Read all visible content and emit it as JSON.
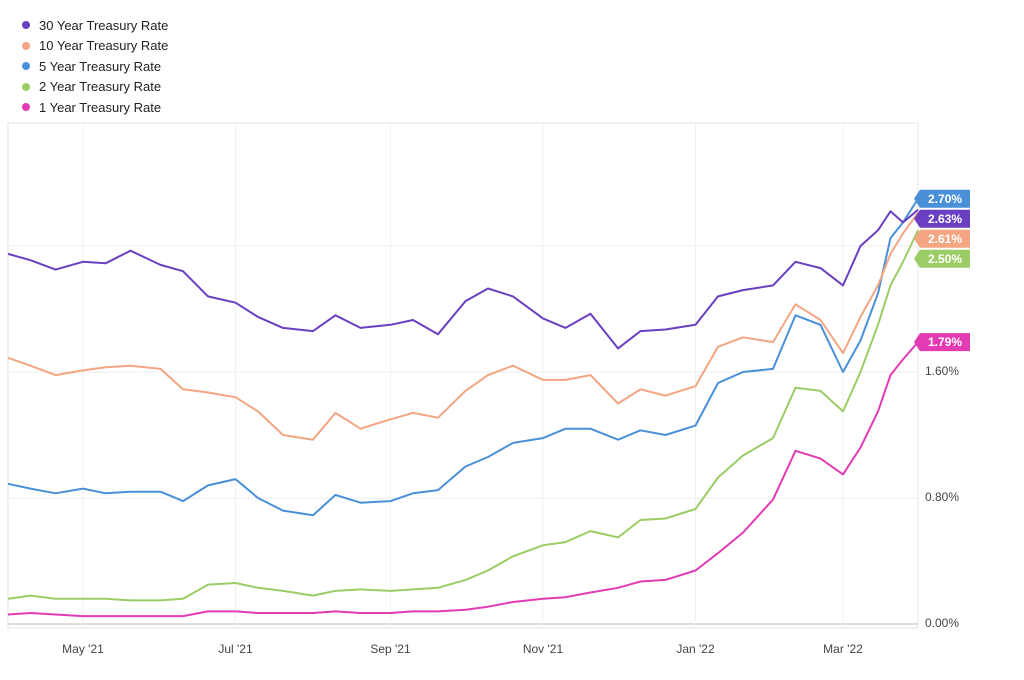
{
  "chart_data": {
    "type": "line",
    "title": "",
    "xlabel": "",
    "ylabel": "",
    "x_range": [
      "2021-04-01",
      "2022-03-31"
    ],
    "ylim": [
      0,
      3.1
    ],
    "y_ticks": [
      0,
      0.8,
      1.6
    ],
    "y_tick_labels": [
      "0.00%",
      "0.80%",
      "1.60%"
    ],
    "x_ticks": [
      "2021-05-01",
      "2021-07-01",
      "2021-09-01",
      "2021-11-01",
      "2022-01-01",
      "2022-03-01"
    ],
    "x_tick_labels": [
      "May '21",
      "Jul '21",
      "Sep '21",
      "Nov '21",
      "Jan '22",
      "Mar '22"
    ],
    "grid": true,
    "legend_position": "top-left",
    "series": [
      {
        "name": "30 Year Treasury Rate",
        "color": "#6a3fc1",
        "end_label": "2.63%",
        "points": [
          [
            "2021-04-01",
            2.35
          ],
          [
            "2021-04-10",
            2.31
          ],
          [
            "2021-04-20",
            2.25
          ],
          [
            "2021-05-01",
            2.3
          ],
          [
            "2021-05-10",
            2.29
          ],
          [
            "2021-05-20",
            2.37
          ],
          [
            "2021-06-01",
            2.28
          ],
          [
            "2021-06-10",
            2.24
          ],
          [
            "2021-06-20",
            2.08
          ],
          [
            "2021-07-01",
            2.04
          ],
          [
            "2021-07-10",
            1.95
          ],
          [
            "2021-07-20",
            1.88
          ],
          [
            "2021-08-01",
            1.86
          ],
          [
            "2021-08-10",
            1.96
          ],
          [
            "2021-08-20",
            1.88
          ],
          [
            "2021-09-01",
            1.9
          ],
          [
            "2021-09-10",
            1.93
          ],
          [
            "2021-09-20",
            1.84
          ],
          [
            "2021-10-01",
            2.05
          ],
          [
            "2021-10-10",
            2.13
          ],
          [
            "2021-10-20",
            2.08
          ],
          [
            "2021-11-01",
            1.94
          ],
          [
            "2021-11-10",
            1.88
          ],
          [
            "2021-11-20",
            1.97
          ],
          [
            "2021-12-01",
            1.75
          ],
          [
            "2021-12-10",
            1.86
          ],
          [
            "2021-12-20",
            1.87
          ],
          [
            "2022-01-01",
            1.9
          ],
          [
            "2022-01-10",
            2.08
          ],
          [
            "2022-01-20",
            2.12
          ],
          [
            "2022-02-01",
            2.15
          ],
          [
            "2022-02-10",
            2.3
          ],
          [
            "2022-02-20",
            2.26
          ],
          [
            "2022-03-01",
            2.15
          ],
          [
            "2022-03-08",
            2.4
          ],
          [
            "2022-03-15",
            2.5
          ],
          [
            "2022-03-20",
            2.62
          ],
          [
            "2022-03-25",
            2.55
          ],
          [
            "2022-03-31",
            2.63
          ]
        ]
      },
      {
        "name": "10 Year Treasury Rate",
        "color": "#f4a582",
        "end_label": "2.61%",
        "points": [
          [
            "2021-04-01",
            1.69
          ],
          [
            "2021-04-10",
            1.64
          ],
          [
            "2021-04-20",
            1.58
          ],
          [
            "2021-05-01",
            1.61
          ],
          [
            "2021-05-10",
            1.63
          ],
          [
            "2021-05-20",
            1.64
          ],
          [
            "2021-06-01",
            1.62
          ],
          [
            "2021-06-10",
            1.49
          ],
          [
            "2021-06-20",
            1.47
          ],
          [
            "2021-07-01",
            1.44
          ],
          [
            "2021-07-10",
            1.35
          ],
          [
            "2021-07-20",
            1.2
          ],
          [
            "2021-08-01",
            1.17
          ],
          [
            "2021-08-10",
            1.34
          ],
          [
            "2021-08-20",
            1.24
          ],
          [
            "2021-09-01",
            1.3
          ],
          [
            "2021-09-10",
            1.34
          ],
          [
            "2021-09-20",
            1.31
          ],
          [
            "2021-10-01",
            1.48
          ],
          [
            "2021-10-10",
            1.58
          ],
          [
            "2021-10-20",
            1.64
          ],
          [
            "2021-11-01",
            1.55
          ],
          [
            "2021-11-10",
            1.55
          ],
          [
            "2021-11-20",
            1.58
          ],
          [
            "2021-12-01",
            1.4
          ],
          [
            "2021-12-10",
            1.49
          ],
          [
            "2021-12-20",
            1.45
          ],
          [
            "2022-01-01",
            1.51
          ],
          [
            "2022-01-10",
            1.76
          ],
          [
            "2022-01-20",
            1.82
          ],
          [
            "2022-02-01",
            1.79
          ],
          [
            "2022-02-10",
            2.03
          ],
          [
            "2022-02-20",
            1.93
          ],
          [
            "2022-03-01",
            1.72
          ],
          [
            "2022-03-08",
            1.95
          ],
          [
            "2022-03-15",
            2.15
          ],
          [
            "2022-03-20",
            2.35
          ],
          [
            "2022-03-25",
            2.48
          ],
          [
            "2022-03-31",
            2.61
          ]
        ]
      },
      {
        "name": "5 Year Treasury Rate",
        "color": "#4a90d9",
        "end_label": "2.70%",
        "points": [
          [
            "2021-04-01",
            0.89
          ],
          [
            "2021-04-10",
            0.86
          ],
          [
            "2021-04-20",
            0.83
          ],
          [
            "2021-05-01",
            0.86
          ],
          [
            "2021-05-10",
            0.83
          ],
          [
            "2021-05-20",
            0.84
          ],
          [
            "2021-06-01",
            0.84
          ],
          [
            "2021-06-10",
            0.78
          ],
          [
            "2021-06-20",
            0.88
          ],
          [
            "2021-07-01",
            0.92
          ],
          [
            "2021-07-10",
            0.8
          ],
          [
            "2021-07-20",
            0.72
          ],
          [
            "2021-08-01",
            0.69
          ],
          [
            "2021-08-10",
            0.82
          ],
          [
            "2021-08-20",
            0.77
          ],
          [
            "2021-09-01",
            0.78
          ],
          [
            "2021-09-10",
            0.83
          ],
          [
            "2021-09-20",
            0.85
          ],
          [
            "2021-10-01",
            1.0
          ],
          [
            "2021-10-10",
            1.06
          ],
          [
            "2021-10-20",
            1.15
          ],
          [
            "2021-11-01",
            1.18
          ],
          [
            "2021-11-10",
            1.24
          ],
          [
            "2021-11-20",
            1.24
          ],
          [
            "2021-12-01",
            1.17
          ],
          [
            "2021-12-10",
            1.23
          ],
          [
            "2021-12-20",
            1.2
          ],
          [
            "2022-01-01",
            1.26
          ],
          [
            "2022-01-10",
            1.53
          ],
          [
            "2022-01-20",
            1.6
          ],
          [
            "2022-02-01",
            1.62
          ],
          [
            "2022-02-10",
            1.96
          ],
          [
            "2022-02-20",
            1.9
          ],
          [
            "2022-03-01",
            1.6
          ],
          [
            "2022-03-08",
            1.8
          ],
          [
            "2022-03-15",
            2.1
          ],
          [
            "2022-03-20",
            2.45
          ],
          [
            "2022-03-25",
            2.55
          ],
          [
            "2022-03-31",
            2.7
          ]
        ]
      },
      {
        "name": "2 Year Treasury Rate",
        "color": "#9ccc65",
        "end_label": "2.50%",
        "points": [
          [
            "2021-04-01",
            0.16
          ],
          [
            "2021-04-10",
            0.18
          ],
          [
            "2021-04-20",
            0.16
          ],
          [
            "2021-05-01",
            0.16
          ],
          [
            "2021-05-10",
            0.16
          ],
          [
            "2021-05-20",
            0.15
          ],
          [
            "2021-06-01",
            0.15
          ],
          [
            "2021-06-10",
            0.16
          ],
          [
            "2021-06-20",
            0.25
          ],
          [
            "2021-07-01",
            0.26
          ],
          [
            "2021-07-10",
            0.23
          ],
          [
            "2021-07-20",
            0.21
          ],
          [
            "2021-08-01",
            0.18
          ],
          [
            "2021-08-10",
            0.21
          ],
          [
            "2021-08-20",
            0.22
          ],
          [
            "2021-09-01",
            0.21
          ],
          [
            "2021-09-10",
            0.22
          ],
          [
            "2021-09-20",
            0.23
          ],
          [
            "2021-10-01",
            0.28
          ],
          [
            "2021-10-10",
            0.34
          ],
          [
            "2021-10-20",
            0.43
          ],
          [
            "2021-11-01",
            0.5
          ],
          [
            "2021-11-10",
            0.52
          ],
          [
            "2021-11-20",
            0.59
          ],
          [
            "2021-12-01",
            0.55
          ],
          [
            "2021-12-10",
            0.66
          ],
          [
            "2021-12-20",
            0.67
          ],
          [
            "2022-01-01",
            0.73
          ],
          [
            "2022-01-10",
            0.93
          ],
          [
            "2022-01-20",
            1.07
          ],
          [
            "2022-02-01",
            1.18
          ],
          [
            "2022-02-10",
            1.5
          ],
          [
            "2022-02-20",
            1.48
          ],
          [
            "2022-03-01",
            1.35
          ],
          [
            "2022-03-08",
            1.6
          ],
          [
            "2022-03-15",
            1.9
          ],
          [
            "2022-03-20",
            2.15
          ],
          [
            "2022-03-25",
            2.3
          ],
          [
            "2022-03-31",
            2.5
          ]
        ]
      },
      {
        "name": "1 Year Treasury Rate",
        "color": "#e33bb4",
        "end_label": "1.79%",
        "points": [
          [
            "2021-04-01",
            0.06
          ],
          [
            "2021-04-10",
            0.07
          ],
          [
            "2021-04-20",
            0.06
          ],
          [
            "2021-05-01",
            0.05
          ],
          [
            "2021-05-10",
            0.05
          ],
          [
            "2021-05-20",
            0.05
          ],
          [
            "2021-06-01",
            0.05
          ],
          [
            "2021-06-10",
            0.05
          ],
          [
            "2021-06-20",
            0.08
          ],
          [
            "2021-07-01",
            0.08
          ],
          [
            "2021-07-10",
            0.07
          ],
          [
            "2021-07-20",
            0.07
          ],
          [
            "2021-08-01",
            0.07
          ],
          [
            "2021-08-10",
            0.08
          ],
          [
            "2021-08-20",
            0.07
          ],
          [
            "2021-09-01",
            0.07
          ],
          [
            "2021-09-10",
            0.08
          ],
          [
            "2021-09-20",
            0.08
          ],
          [
            "2021-10-01",
            0.09
          ],
          [
            "2021-10-10",
            0.11
          ],
          [
            "2021-10-20",
            0.14
          ],
          [
            "2021-11-01",
            0.16
          ],
          [
            "2021-11-10",
            0.17
          ],
          [
            "2021-11-20",
            0.2
          ],
          [
            "2021-12-01",
            0.23
          ],
          [
            "2021-12-10",
            0.27
          ],
          [
            "2021-12-20",
            0.28
          ],
          [
            "2022-01-01",
            0.34
          ],
          [
            "2022-01-10",
            0.45
          ],
          [
            "2022-01-20",
            0.58
          ],
          [
            "2022-02-01",
            0.79
          ],
          [
            "2022-02-10",
            1.1
          ],
          [
            "2022-02-20",
            1.05
          ],
          [
            "2022-03-01",
            0.95
          ],
          [
            "2022-03-08",
            1.12
          ],
          [
            "2022-03-15",
            1.35
          ],
          [
            "2022-03-20",
            1.58
          ],
          [
            "2022-03-25",
            1.68
          ],
          [
            "2022-03-31",
            1.79
          ]
        ]
      }
    ]
  }
}
